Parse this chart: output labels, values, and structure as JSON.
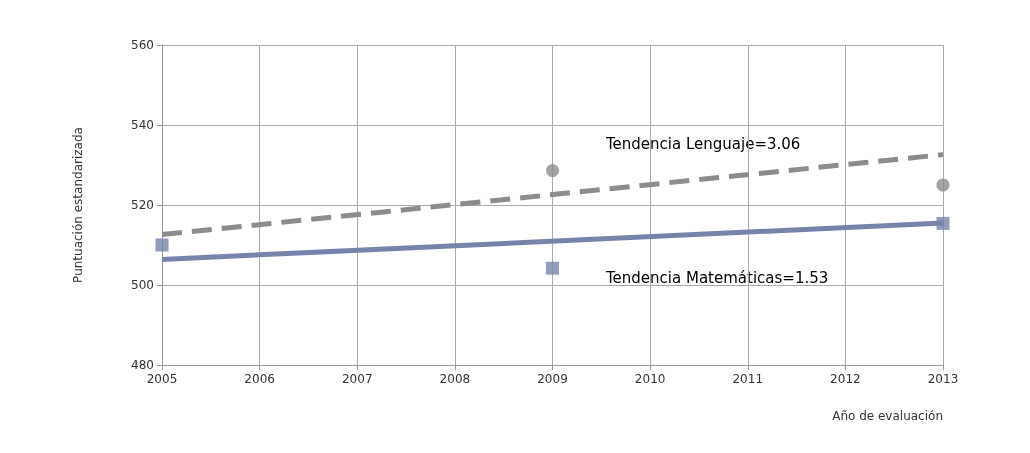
{
  "chart_data": {
    "type": "scatter",
    "xlabel": "Año de evaluación",
    "ylabel": "Puntuación estandarizada",
    "xlim": [
      2005,
      2013
    ],
    "xticks": [
      2005,
      2006,
      2007,
      2008,
      2009,
      2010,
      2011,
      2012,
      2013
    ],
    "ylim": [
      480,
      560
    ],
    "yticks": [
      480,
      500,
      520,
      540,
      560
    ],
    "grid": true,
    "series": [
      {
        "type": "scatter",
        "marker": "circle",
        "color": "#8c8c8c",
        "x": [
          2009,
          2013
        ],
        "values": [
          528.6,
          525
        ]
      },
      {
        "type": "scatter",
        "marker": "square",
        "color": "#7783aa",
        "x": [
          2005,
          2009,
          2013
        ],
        "values": [
          510,
          504.2,
          515.4
        ]
      },
      {
        "type": "line",
        "marker": "none",
        "line_style": "dashed",
        "color": "#8c8c8c",
        "x": [
          2005,
          2013
        ],
        "values": [
          512.6,
          532.6
        ]
      },
      {
        "type": "line",
        "marker": "none",
        "line_style": "solid",
        "color": "#7783aa",
        "x": [
          2005,
          2013
        ],
        "values": [
          506.4,
          515.5
        ]
      }
    ],
    "annotations": [
      "Tendencia Lenguaje=3.06",
      "Tendencia Matemáticas=1.53"
    ]
  }
}
